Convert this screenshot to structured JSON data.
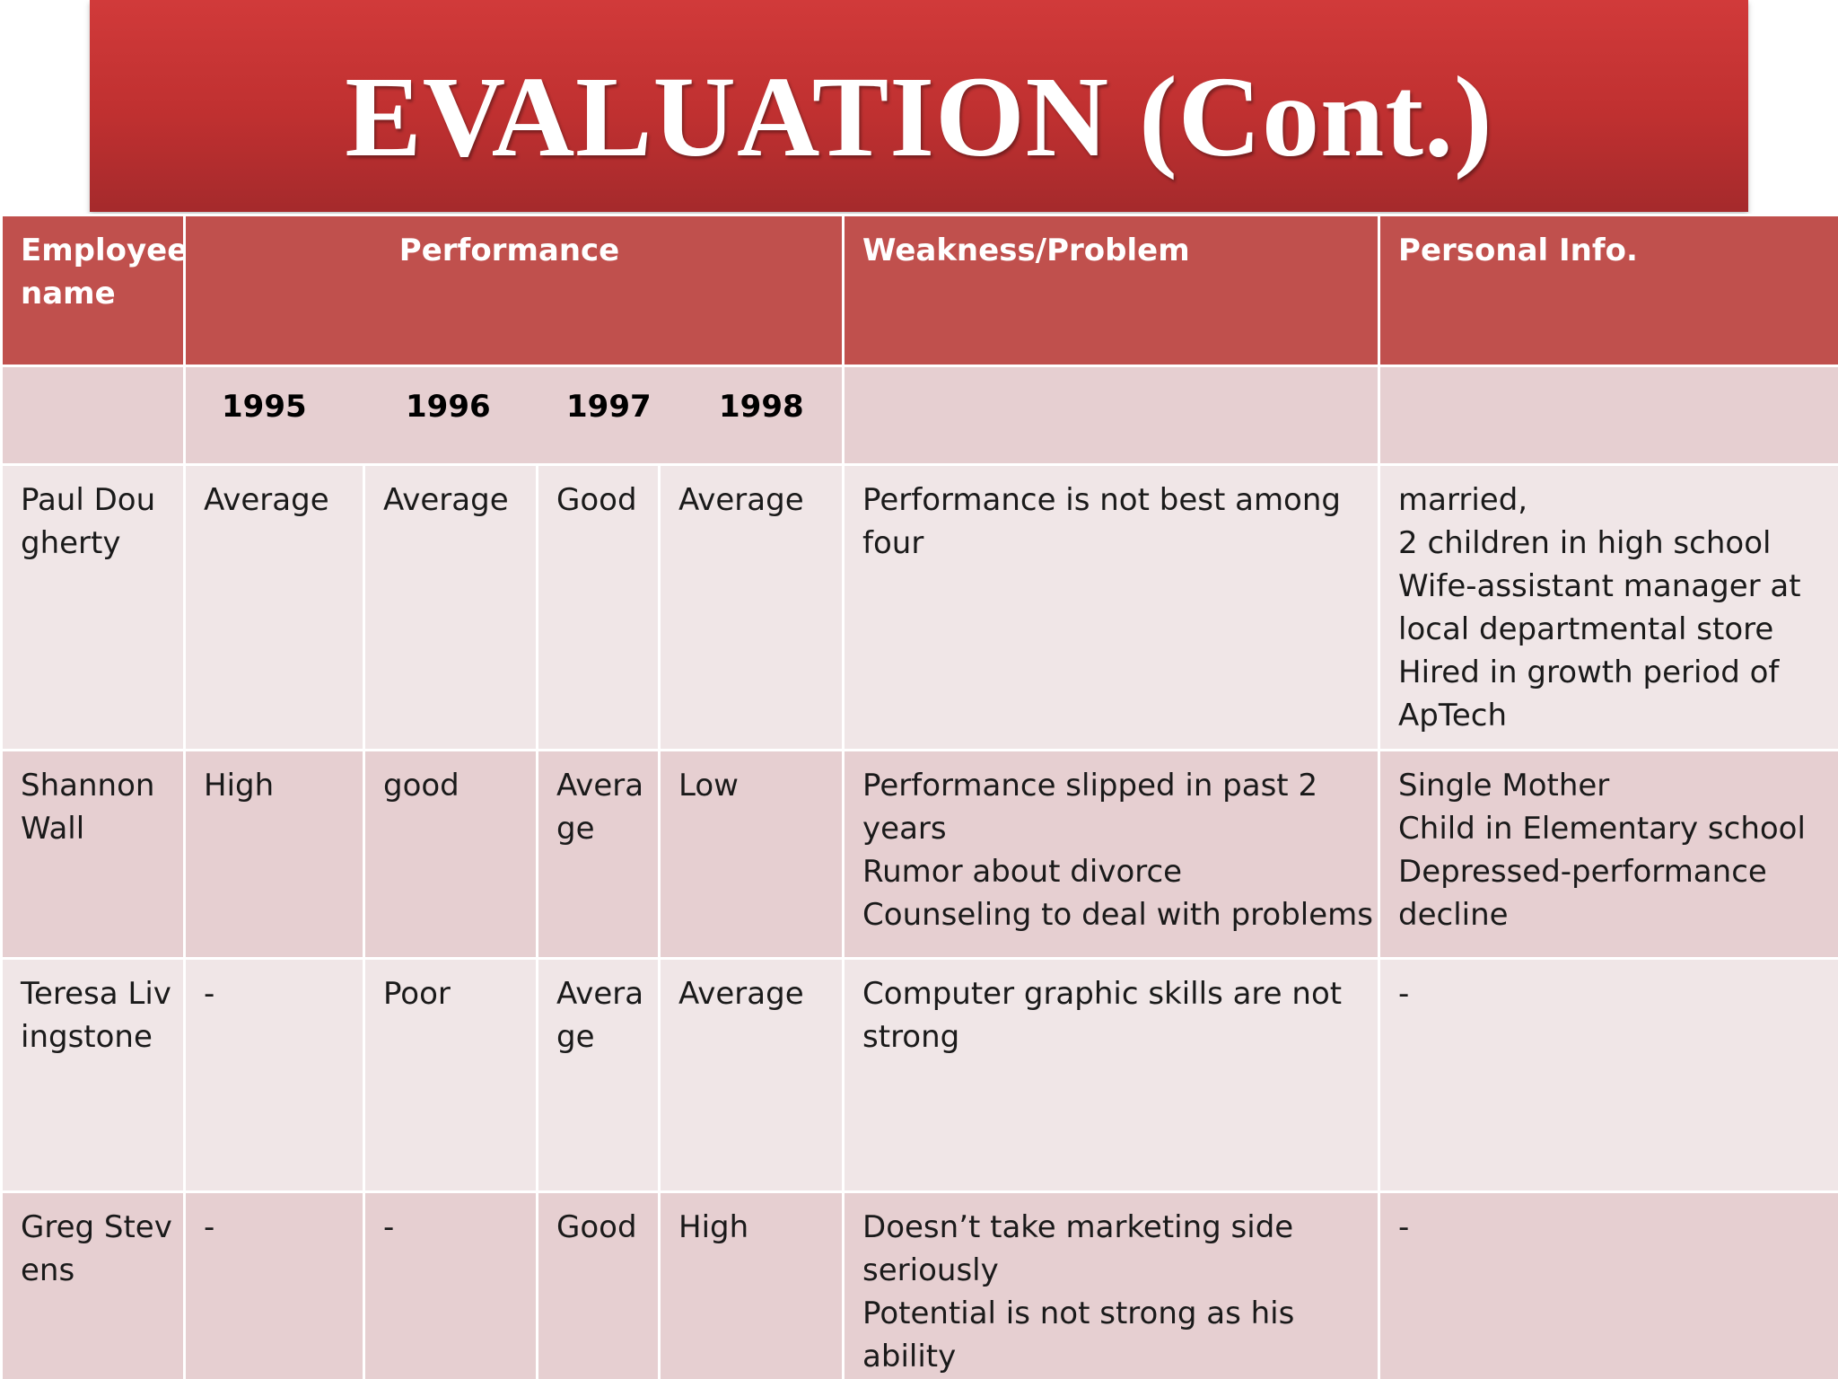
{
  "title": "EVALUATION (Cont.)",
  "table": {
    "headers": {
      "employee": "Employee name",
      "performance": "Performance",
      "weakness": "Weakness/Problem",
      "personal": "Personal Info."
    },
    "years": [
      "1995",
      "1996",
      "1997",
      "1998"
    ],
    "rows": [
      {
        "name": "Paul Dougherty",
        "perf": [
          "Average",
          "Average",
          "Good",
          "Average"
        ],
        "weakness": [
          "Performance is not best among",
          "four"
        ],
        "personal": [
          "married,",
          "2 children in high school",
          "Wife-assistant manager at",
          "local departmental store",
          "Hired in growth period of",
          "ApTech"
        ]
      },
      {
        "name": "Shannon Wall",
        "perf": [
          "High",
          "good",
          "Average",
          "Low"
        ],
        "weakness": [
          "Performance slipped in past 2",
          "years",
          "Rumor about divorce",
          "Counseling to deal with problems"
        ],
        "personal": [
          "Single Mother",
          "Child in Elementary school",
          "Depressed-performance",
          "decline"
        ]
      },
      {
        "name": "Teresa Livingstone",
        "perf": [
          "-",
          "Poor",
          "Average",
          "Average"
        ],
        "weakness": [
          "Computer graphic skills are not",
          "strong"
        ],
        "personal": [
          "-"
        ]
      },
      {
        "name": "Greg Stevens",
        "perf": [
          "-",
          "-",
          "Good",
          "High"
        ],
        "weakness": [
          "Doesn’t take marketing side",
          "seriously",
          "Potential is not strong as his",
          "ability"
        ],
        "personal": [
          "-"
        ]
      }
    ]
  }
}
